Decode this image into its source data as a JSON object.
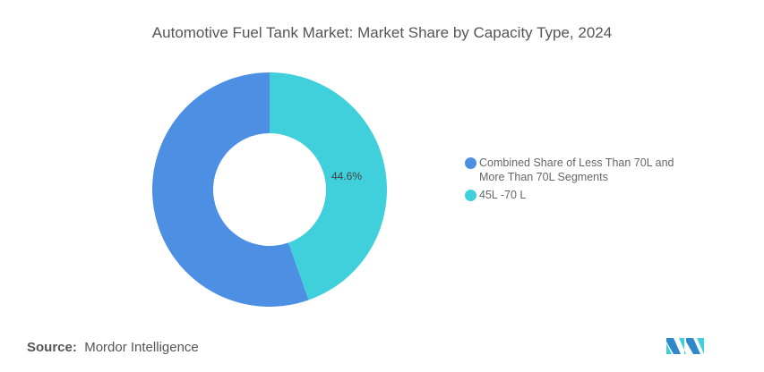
{
  "title": "Automotive Fuel Tank Market: Market Share by Capacity Type, 2024",
  "source_label": "Source:",
  "source_value": "Mordor Intelligence",
  "logo_text": "MI",
  "chart_data": {
    "type": "pie",
    "variant": "donut",
    "title": "Automotive Fuel Tank Market: Market Share by Capacity Type, 2024",
    "slices": [
      {
        "label": "45L -70 L",
        "value": 44.6,
        "color": "#40D0DC",
        "data_label": "44.6%"
      },
      {
        "label": "Combined Share of Less Than 70L and More Than 70L Segments",
        "value": 55.4,
        "color": "#4C8FE3",
        "data_label": ""
      }
    ],
    "legend": [
      {
        "label": "Combined Share of Less Than 70L and More Than 70L Segments",
        "color": "#4C8FE3"
      },
      {
        "label": "45L -70 L",
        "color": "#40D0DC"
      }
    ],
    "legend_placement": "right"
  }
}
